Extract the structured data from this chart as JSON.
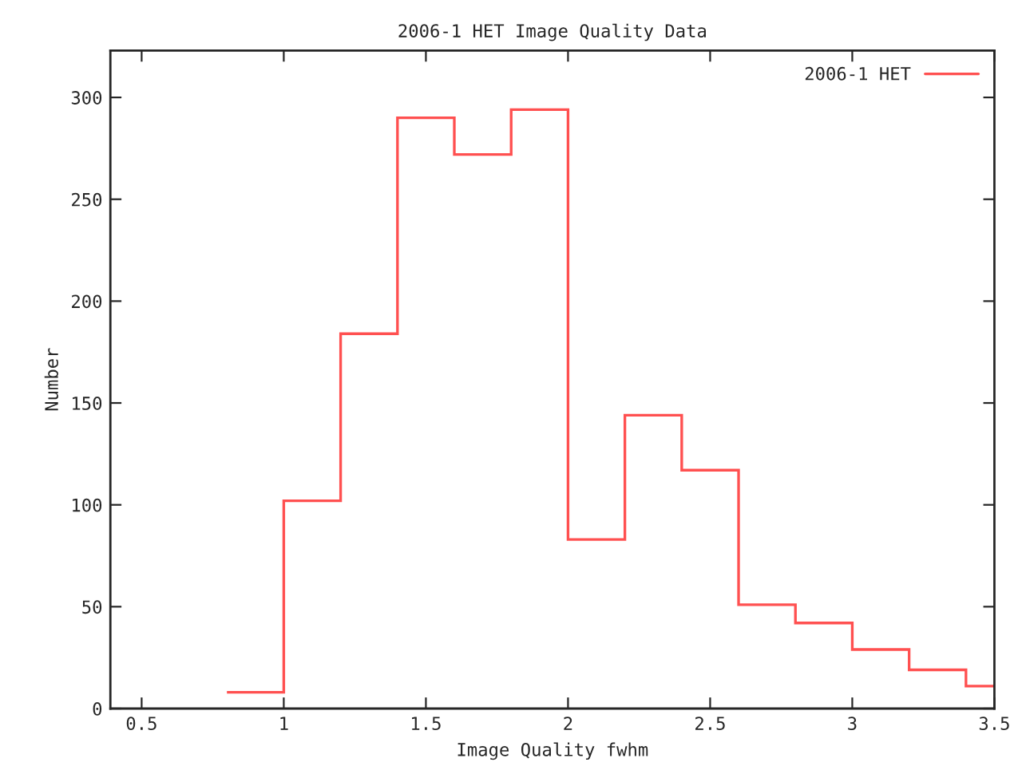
{
  "chart_data": {
    "type": "histogram",
    "title": "2006-1 HET Image Quality Data",
    "xlabel": "Image Quality fwhm",
    "ylabel": "Number",
    "bins": [
      0.8,
      1.0,
      1.2,
      1.4,
      1.6,
      1.8,
      2.0,
      2.2,
      2.4,
      2.6,
      2.8,
      3.0,
      3.2,
      3.4,
      3.5
    ],
    "series": [
      {
        "name": "2006-1 HET",
        "color": "#ff5050",
        "values": [
          8,
          102,
          184,
          290,
          272,
          294,
          83,
          144,
          117,
          51,
          42,
          29,
          19,
          11
        ]
      }
    ],
    "xlim": [
      0.39,
      3.5
    ],
    "ylim": [
      0,
      323
    ],
    "xticks": [
      0.5,
      1,
      1.5,
      2,
      2.5,
      3,
      3.5
    ],
    "yticks": [
      0,
      50,
      100,
      150,
      200,
      250,
      300
    ],
    "grid": false,
    "legend": "top right"
  }
}
